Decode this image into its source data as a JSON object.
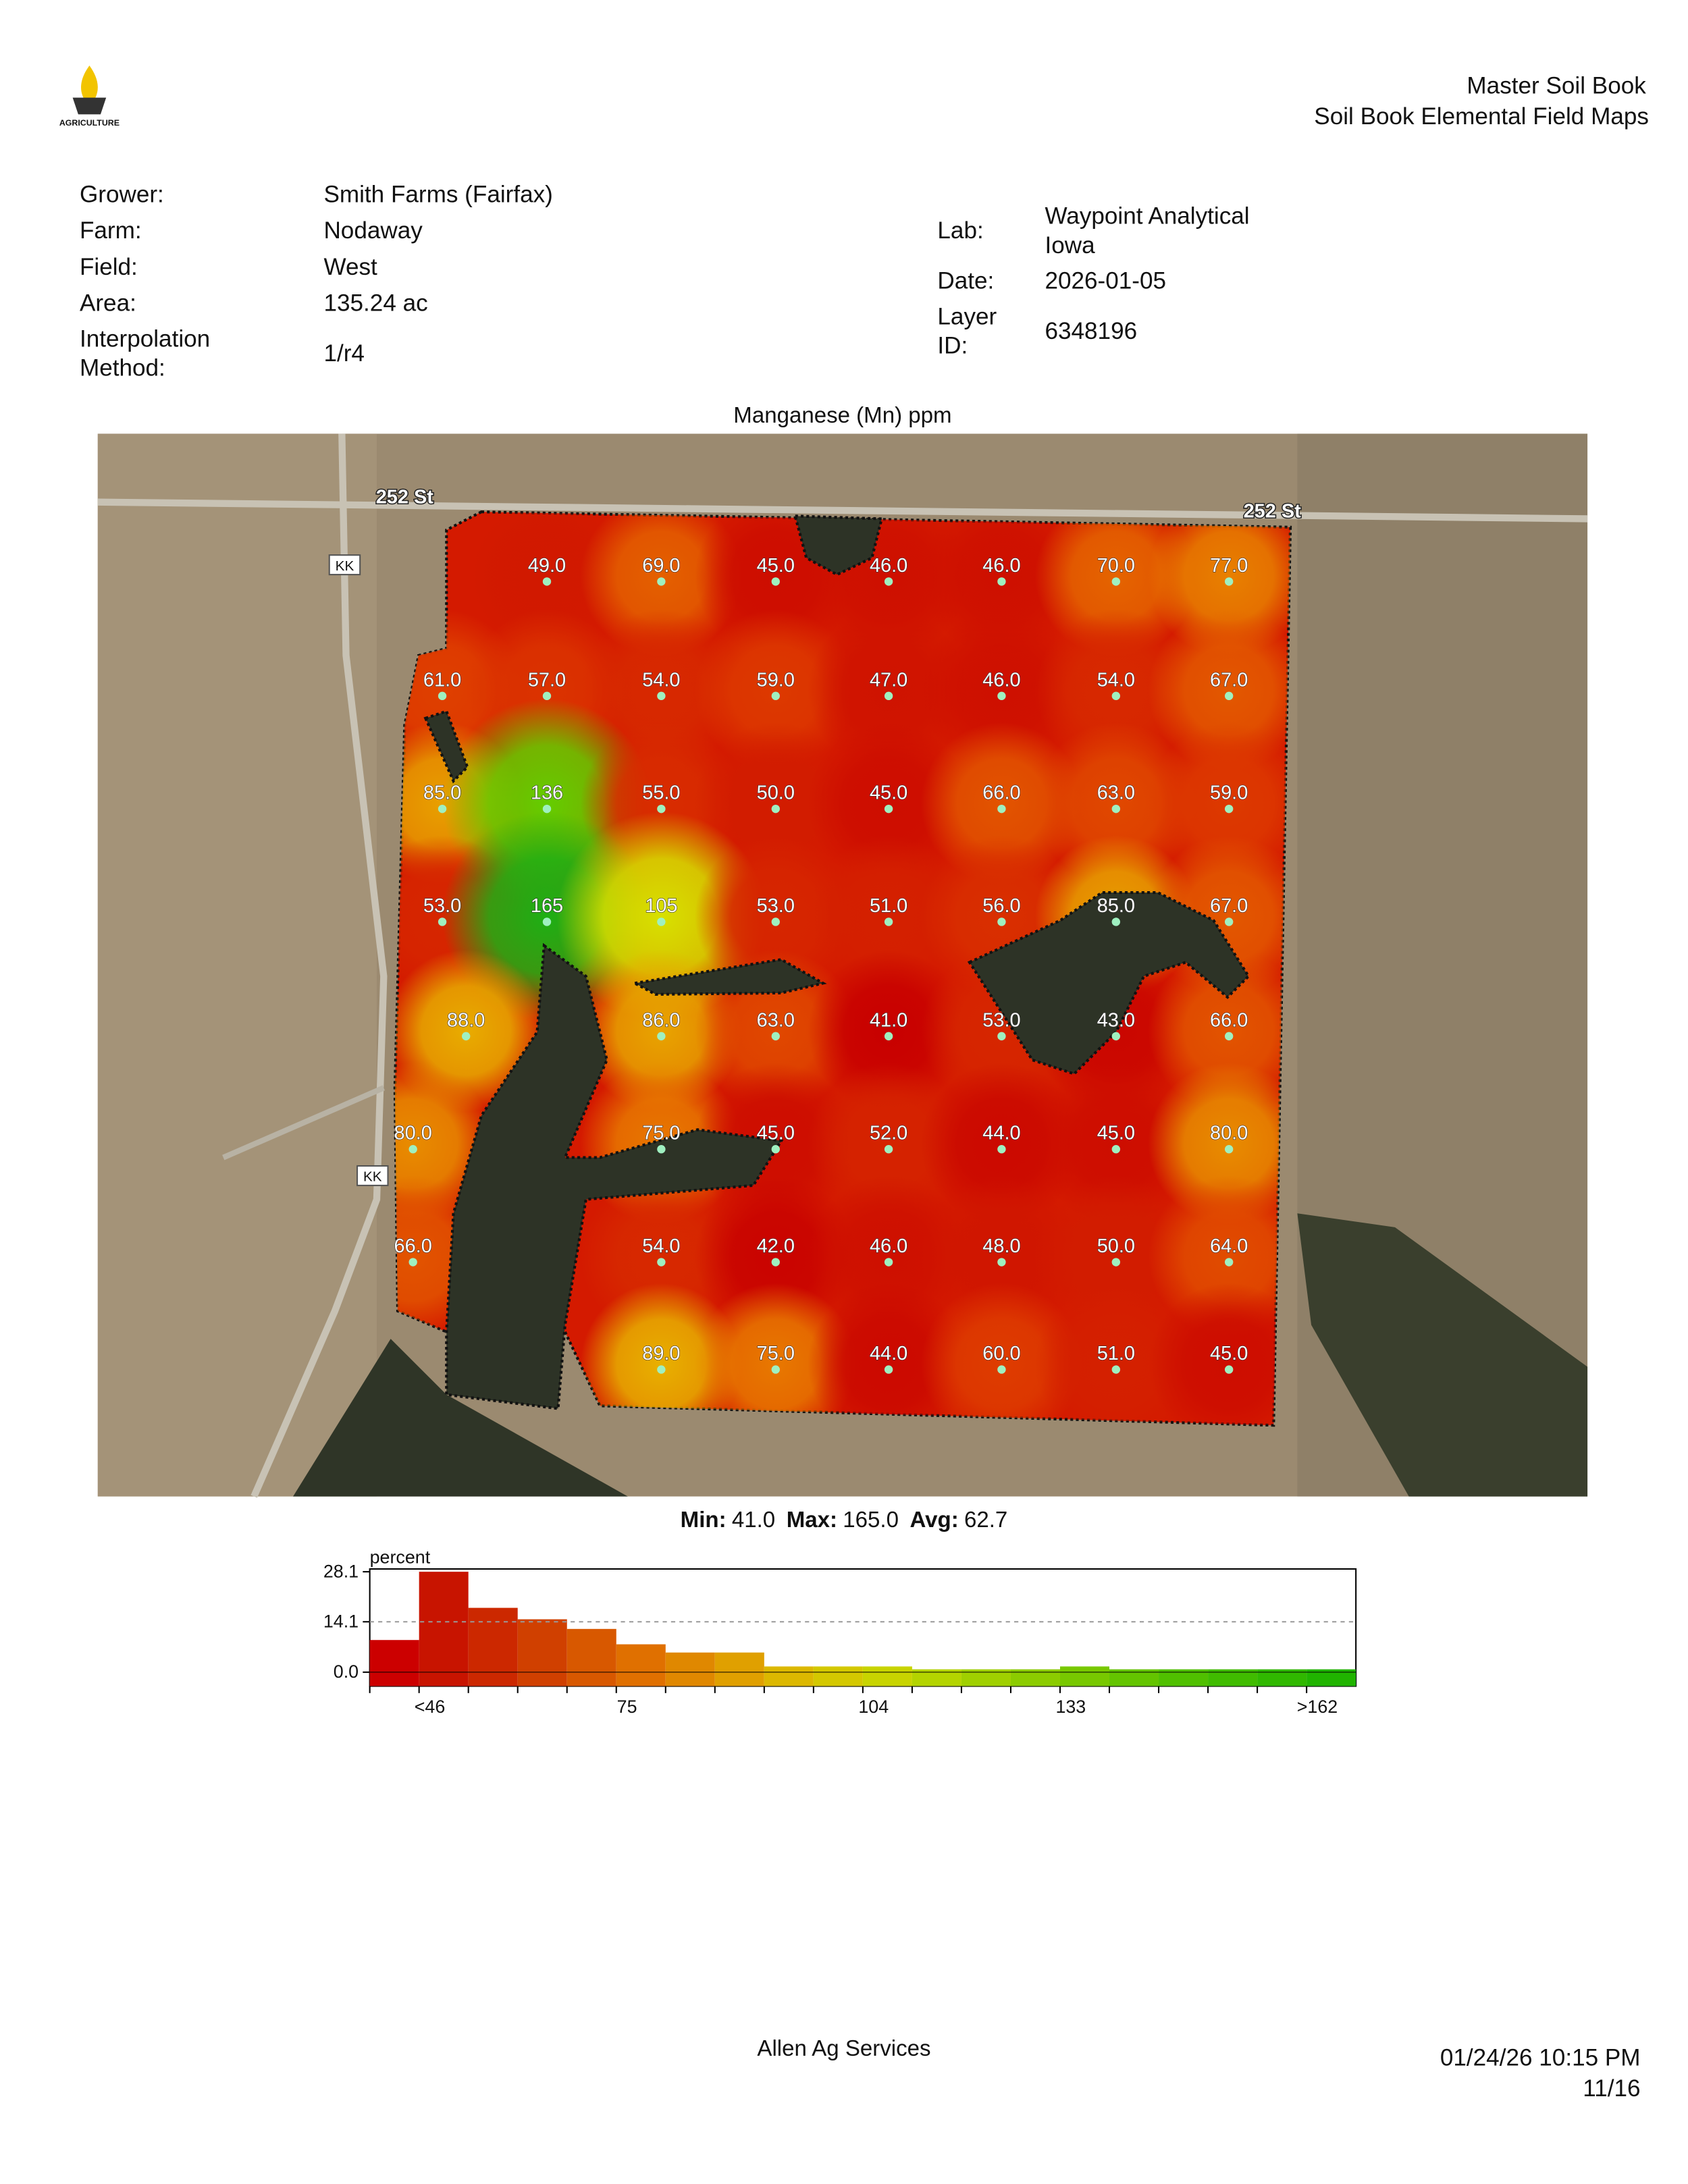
{
  "header": {
    "logo_text": "AGRICULTURE",
    "title": "Master Soil Book",
    "subtitle": "Soil Book Elemental Field Maps"
  },
  "info_left": [
    {
      "label": [
        "Grower:"
      ],
      "value": [
        "Smith Farms (Fairfax)"
      ]
    },
    {
      "label": [
        "Farm:"
      ],
      "value": [
        "Nodaway"
      ]
    },
    {
      "label": [
        "Field:"
      ],
      "value": [
        "West"
      ]
    },
    {
      "label": [
        "Area:"
      ],
      "value": [
        "135.24 ac"
      ]
    },
    {
      "label": [
        "Interpolation",
        "Method:"
      ],
      "value": [
        "1/r4"
      ]
    }
  ],
  "info_right": [
    {
      "label": [
        "Lab:"
      ],
      "value": [
        "Waypoint Analytical",
        "Iowa"
      ]
    },
    {
      "label": [
        "Date:"
      ],
      "value": [
        "2026-01-05"
      ]
    },
    {
      "label": [
        "Layer",
        "ID:"
      ],
      "value": [
        "6348196"
      ]
    }
  ],
  "map": {
    "title": "Manganese (Mn) ppm",
    "road_labels": [
      "252 St",
      "252 St",
      "KK",
      "KK"
    ],
    "points": [
      [
        null,
        "49.0",
        "69.0",
        "45.0",
        "46.0",
        "46.0",
        "70.0",
        "77.0"
      ],
      [
        "61.0",
        "57.0",
        "54.0",
        "59.0",
        "47.0",
        "46.0",
        "54.0",
        "67.0"
      ],
      [
        "85.0",
        "136",
        "55.0",
        "50.0",
        "45.0",
        "66.0",
        "63.0",
        "59.0"
      ],
      [
        "53.0",
        "165",
        "105",
        "53.0",
        "51.0",
        "56.0",
        "85.0",
        "67.0"
      ],
      [
        "88.0",
        null,
        "86.0",
        "63.0",
        "41.0",
        "53.0",
        "43.0",
        "66.0"
      ],
      [
        "80.0",
        null,
        "75.0",
        "45.0",
        "52.0",
        "44.0",
        "45.0",
        "80.0"
      ],
      [
        "66.0",
        null,
        "54.0",
        "42.0",
        "46.0",
        "48.0",
        "50.0",
        "64.0"
      ],
      [
        null,
        null,
        "89.0",
        "75.0",
        "44.0",
        "60.0",
        "51.0",
        "45.0"
      ]
    ]
  },
  "stats": [
    {
      "label": "Min:",
      "value": "41.0"
    },
    {
      "label": "Max:",
      "value": "165.0"
    },
    {
      "label": "Avg:",
      "value": "62.7"
    }
  ],
  "chart_data": {
    "type": "bar",
    "y_label": "percent",
    "categories": [
      null,
      "<46",
      null,
      null,
      null,
      "75",
      null,
      null,
      null,
      null,
      "104",
      null,
      null,
      null,
      "133",
      null,
      null,
      null,
      null,
      ">162"
    ],
    "values": [
      9.0,
      28.1,
      18.0,
      14.8,
      12.1,
      7.8,
      5.5,
      5.5,
      1.6,
      1.6,
      1.6,
      0.8,
      0.8,
      0.8,
      1.6,
      0.8,
      0.8,
      0.8,
      0.8,
      0.8
    ],
    "colors": [
      "#cc0000",
      "#c81400",
      "#cc2800",
      "#d04000",
      "#d85800",
      "#e07000",
      "#e08800",
      "#e0a000",
      "#dcb800",
      "#d4c800",
      "#c8d400",
      "#b4d400",
      "#a0d000",
      "#8ccc00",
      "#78c800",
      "#64c400",
      "#50c000",
      "#40bc00",
      "#30b800",
      "#20b400"
    ],
    "ylim": [
      0,
      28.1
    ],
    "yticks": [
      {
        "value": 0,
        "label": "0.0"
      },
      14.1,
      28.1
    ],
    "reference_line": 14.1
  },
  "footer": {
    "company": "Allen Ag Services",
    "timestamp": "01/24/26 10:15 PM",
    "page": "11/16"
  }
}
